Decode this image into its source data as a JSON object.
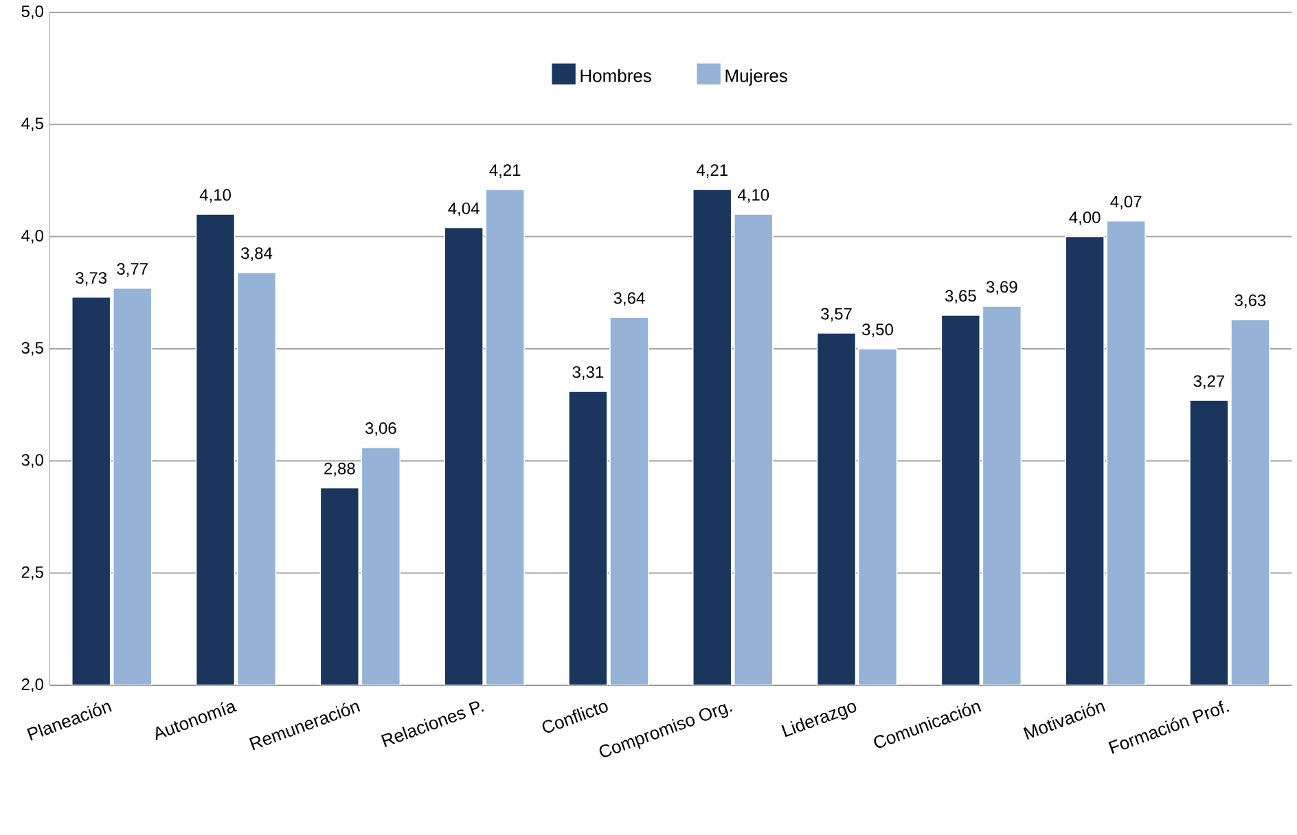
{
  "chart_data": {
    "type": "bar",
    "categories": [
      "Planeación",
      "Autonomía",
      "Remuneración",
      "Relaciones P.",
      "Conflicto",
      "Compromiso Org.",
      "Liderazgo",
      "Comunicación",
      "Motivación",
      "Formación Prof."
    ],
    "series": [
      {
        "name": "Hombres",
        "color": "#1b365d",
        "values": [
          3.73,
          4.1,
          2.88,
          4.04,
          3.31,
          4.21,
          3.57,
          3.65,
          4.0,
          3.27
        ],
        "value_labels": [
          "3,73",
          "4,10",
          "2,88",
          "4,04",
          "3,31",
          "4,21",
          "3,57",
          "3,65",
          "4,00",
          "3,27"
        ]
      },
      {
        "name": "Mujeres",
        "color": "#95b3d7",
        "values": [
          3.77,
          3.84,
          3.06,
          4.21,
          3.64,
          4.1,
          3.5,
          3.69,
          4.07,
          3.63
        ],
        "value_labels": [
          "3,77",
          "3,84",
          "3,06",
          "4,21",
          "3,64",
          "4,10",
          "3,50",
          "3,69",
          "4,07",
          "3,63"
        ]
      }
    ],
    "ylim": [
      2.0,
      5.0
    ],
    "yticks": [
      {
        "value": 2.0,
        "label": "2,0"
      },
      {
        "value": 2.5,
        "label": "2,5"
      },
      {
        "value": 3.0,
        "label": "3,0"
      },
      {
        "value": 3.5,
        "label": "3,5"
      },
      {
        "value": 4.0,
        "label": "4,0"
      },
      {
        "value": 4.5,
        "label": "4,5"
      },
      {
        "value": 5.0,
        "label": "5,0"
      }
    ],
    "grid": "y",
    "legend": "top"
  }
}
